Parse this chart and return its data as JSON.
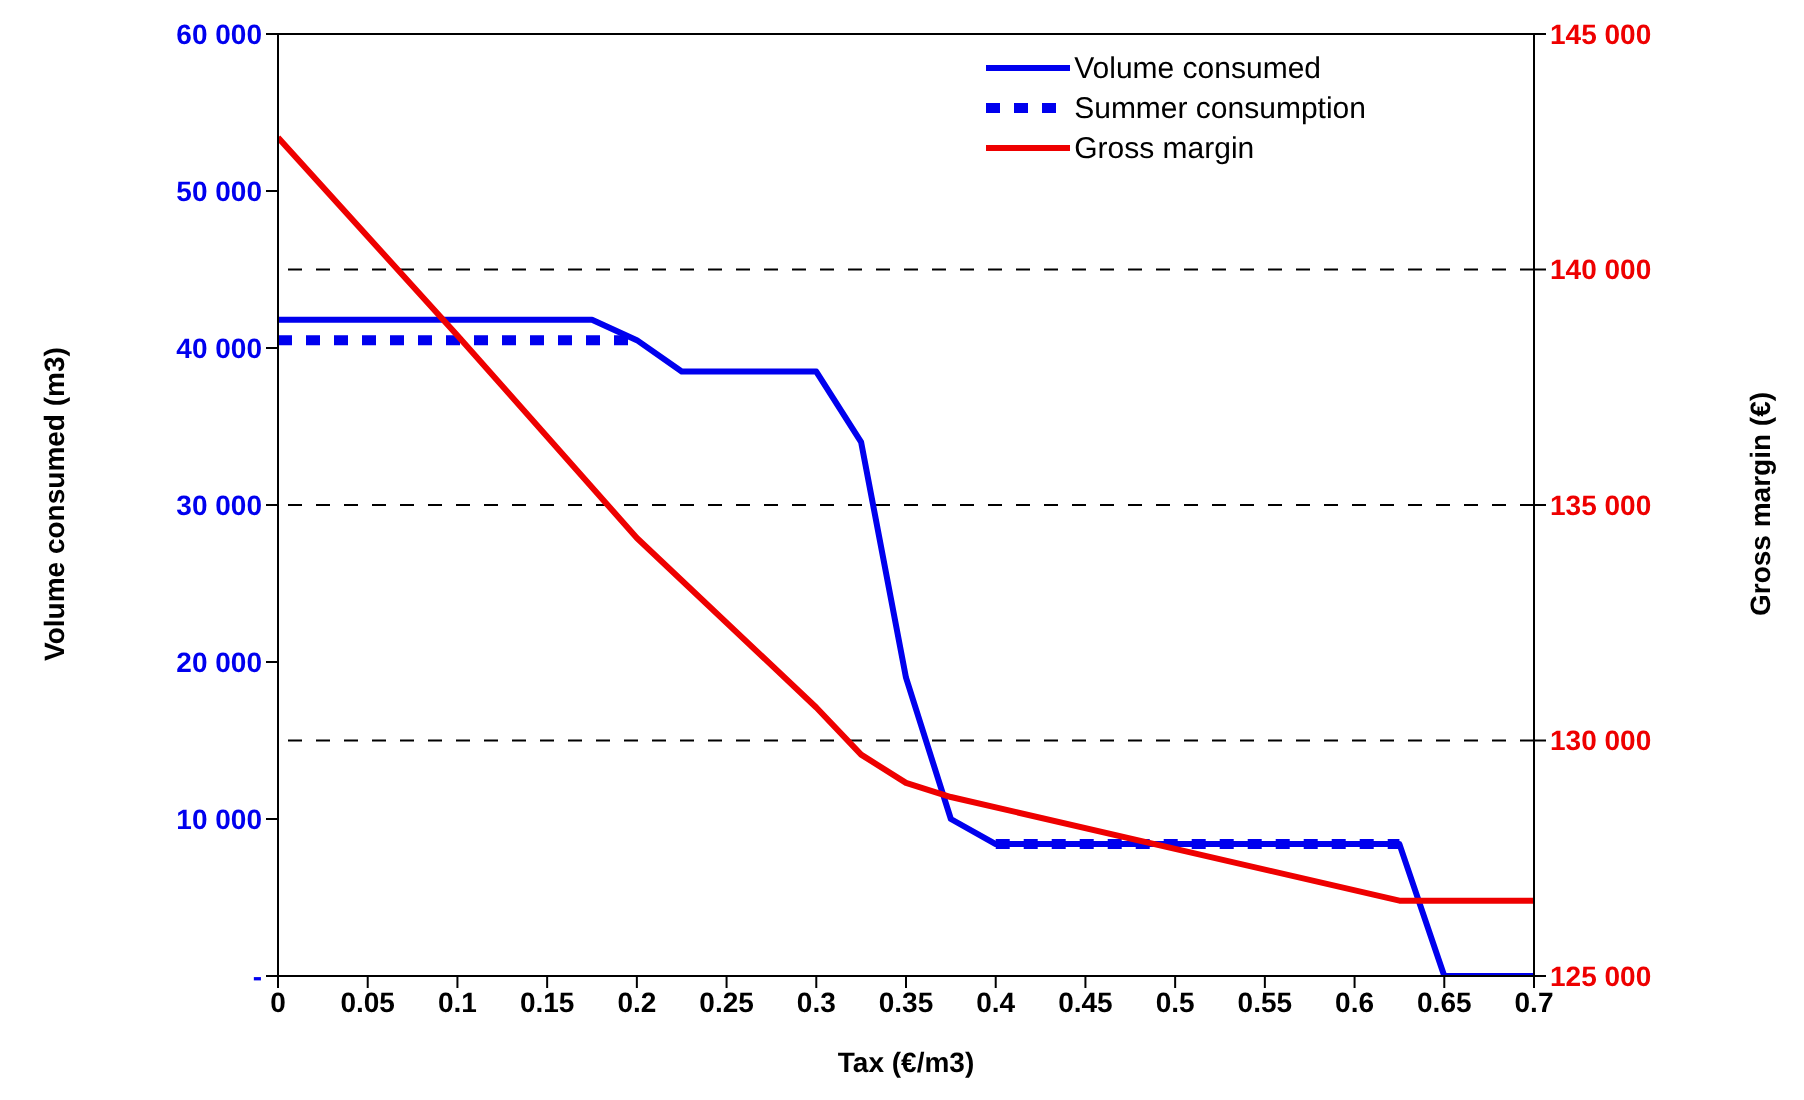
{
  "chart_data": {
    "type": "line",
    "xlabel": "Tax (€/m3)",
    "ylabel": "Volume consumed (m3)",
    "y2label": "Gross margin (€)",
    "xlim": [
      0,
      0.7
    ],
    "xticks": [
      0,
      0.05,
      0.1,
      0.15,
      0.2,
      0.25,
      0.3,
      0.35,
      0.4,
      0.45,
      0.5,
      0.55,
      0.6,
      0.65,
      0.7
    ],
    "ylim": [
      0,
      60000
    ],
    "yticks": [
      {
        "value": 0,
        "label": "-"
      },
      {
        "value": 10000,
        "label": "10 000"
      },
      {
        "value": 20000,
        "label": "20 000"
      },
      {
        "value": 30000,
        "label": "30 000"
      },
      {
        "value": 40000,
        "label": "40 000"
      },
      {
        "value": 50000,
        "label": "50 000"
      },
      {
        "value": 60000,
        "label": "60 000"
      }
    ],
    "y2lim": [
      125000,
      145000
    ],
    "y2ticks": [
      {
        "value": 125000,
        "label": "125 000"
      },
      {
        "value": 130000,
        "label": "130 000"
      },
      {
        "value": 135000,
        "label": "135 000"
      },
      {
        "value": 140000,
        "label": "140 000"
      },
      {
        "value": 145000,
        "label": "145 000"
      }
    ],
    "marker": "none",
    "legend": "top right",
    "ref_lines": [
      {
        "axis": "y2",
        "value": 130000,
        "color": "#000000",
        "line_style": "dashed"
      },
      {
        "axis": "y2",
        "value": 135000,
        "color": "#000000",
        "line_style": "dashed"
      },
      {
        "axis": "y2",
        "value": 140000,
        "color": "#000000",
        "line_style": "dashed"
      }
    ],
    "series": [
      {
        "name": "Volume consumed",
        "color": "#0000ee",
        "line_style": "solid",
        "x": [
          0,
          0.175,
          0.2,
          0.225,
          0.3,
          0.325,
          0.35,
          0.375,
          0.4,
          0.625,
          0.65,
          0.7
        ],
        "values": [
          41800,
          41800,
          40500,
          38500,
          38500,
          34000,
          19000,
          10000,
          8400,
          8400,
          0,
          0
        ]
      },
      {
        "name": "Summer consumption",
        "color": "#0000ee",
        "line_style": "dashed",
        "x": [
          0,
          0.2,
          0.3,
          0.4,
          0.625
        ],
        "values": [
          40500,
          40500,
          null,
          8400,
          8400
        ]
      },
      {
        "name": "Gross margin",
        "color": "#ee0000",
        "line_style": "solid",
        "axis": "y2",
        "x": [
          0,
          0.1,
          0.2,
          0.3,
          0.325,
          0.35,
          0.375,
          0.625,
          0.7
        ],
        "values": [
          142800,
          138600,
          134300,
          130700,
          129700,
          129100,
          128800,
          126600,
          126600
        ]
      }
    ]
  }
}
